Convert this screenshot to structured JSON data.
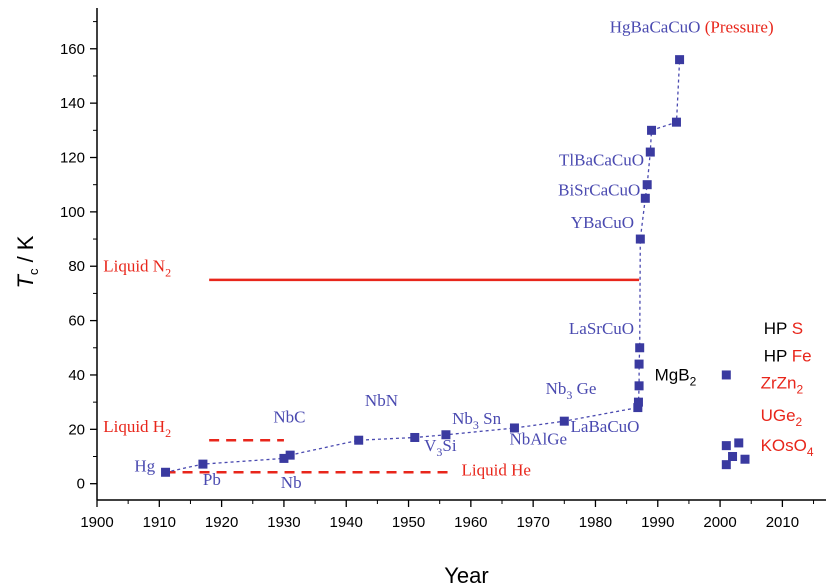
{
  "chart_data": {
    "type": "scatter",
    "xlabel": "Year",
    "ylabel": "T_c / K",
    "xlim": [
      1900,
      2017
    ],
    "ylim": [
      -6,
      175
    ],
    "x_ticks": [
      1900,
      1910,
      1920,
      1930,
      1940,
      1950,
      1960,
      1970,
      1980,
      1990,
      2000,
      2010
    ],
    "y_ticks": [
      0,
      20,
      40,
      60,
      80,
      100,
      120,
      140,
      160
    ],
    "colors": {
      "point": "#3a3aa0",
      "connector": "#4a4ab0",
      "coolant": "#e8261b",
      "label_blue": "#4a4ab0",
      "label_red": "#e8261b",
      "label_black": "#000000"
    },
    "series": [
      {
        "points": [
          {
            "x": 1911,
            "y": 4.2
          },
          {
            "x": 1917,
            "y": 7.2
          },
          {
            "x": 1930,
            "y": 9.3
          },
          {
            "x": 1931,
            "y": 10.5
          },
          {
            "x": 1942,
            "y": 16
          },
          {
            "x": 1951,
            "y": 17
          },
          {
            "x": 1956,
            "y": 18
          },
          {
            "x": 1967,
            "y": 20.5
          },
          {
            "x": 1975,
            "y": 23
          },
          {
            "x": 1986.8,
            "y": 28
          },
          {
            "x": 1986.9,
            "y": 30
          },
          {
            "x": 1987,
            "y": 36
          },
          {
            "x": 1987,
            "y": 44
          },
          {
            "x": 1987.1,
            "y": 50
          },
          {
            "x": 1987.2,
            "y": 90
          },
          {
            "x": 1988,
            "y": 105
          },
          {
            "x": 1988.3,
            "y": 110
          },
          {
            "x": 1988.8,
            "y": 122
          },
          {
            "x": 1989,
            "y": 130
          },
          {
            "x": 1993,
            "y": 133
          },
          {
            "x": 1993.5,
            "y": 156
          }
        ],
        "connected": true
      },
      {
        "points": [
          {
            "x": 2001,
            "y": 40
          },
          {
            "x": 2001,
            "y": 14
          },
          {
            "x": 2001,
            "y": 7
          },
          {
            "x": 2002,
            "y": 10
          },
          {
            "x": 2003,
            "y": 15
          },
          {
            "x": 2004,
            "y": 9
          }
        ],
        "connected": false
      }
    ],
    "reference_lines": [
      {
        "label_id": "liquid_n2",
        "y": 75,
        "x_start": 1918,
        "x_end": 1987,
        "style": "solid"
      },
      {
        "label_id": "liquid_h2",
        "y": 16,
        "x_start": 1918,
        "x_end": 1930,
        "style": "dashed"
      },
      {
        "label_id": "liquid_he",
        "y": 4.2,
        "x_start": 1911,
        "x_end": 1957,
        "style": "dashed"
      }
    ],
    "annotations": [
      {
        "id": "hg",
        "x": 1906,
        "y": 4.5,
        "parts": [
          {
            "t": "Hg"
          }
        ],
        "color": "label_blue",
        "font": "serif",
        "anchor": "start"
      },
      {
        "id": "pb",
        "x": 1917,
        "y": -0.5,
        "parts": [
          {
            "t": "Pb"
          }
        ],
        "color": "label_blue",
        "font": "serif",
        "anchor": "start"
      },
      {
        "id": "nb",
        "x": 1929.5,
        "y": -1.5,
        "parts": [
          {
            "t": "Nb"
          }
        ],
        "color": "label_blue",
        "font": "serif",
        "anchor": "start"
      },
      {
        "id": "nbc",
        "x": 1928.3,
        "y": 22.5,
        "parts": [
          {
            "t": "NbC"
          }
        ],
        "color": "label_blue",
        "font": "serif",
        "anchor": "start"
      },
      {
        "id": "nbn",
        "x": 1943,
        "y": 28.5,
        "parts": [
          {
            "t": "NbN"
          }
        ],
        "color": "label_blue",
        "font": "serif",
        "anchor": "start"
      },
      {
        "id": "v3si",
        "x": 1952.5,
        "y": 12,
        "parts": [
          {
            "t": "V"
          },
          {
            "t": "3",
            "sub": true
          },
          {
            "t": "Si"
          }
        ],
        "color": "label_blue",
        "font": "serif",
        "anchor": "start"
      },
      {
        "id": "nb3sn",
        "x": 1957,
        "y": 22,
        "parts": [
          {
            "t": "Nb"
          },
          {
            "t": "3",
            "sub": true
          },
          {
            "t": " Sn"
          }
        ],
        "color": "label_blue",
        "font": "serif",
        "anchor": "start"
      },
      {
        "id": "nb3ge",
        "x": 1972,
        "y": 33,
        "parts": [
          {
            "t": "Nb"
          },
          {
            "t": "3",
            "sub": true
          },
          {
            "t": " Ge"
          }
        ],
        "color": "label_blue",
        "font": "serif",
        "anchor": "start"
      },
      {
        "id": "nbalge",
        "x": 1966.2,
        "y": 14.5,
        "parts": [
          {
            "t": "NbAlGe"
          }
        ],
        "color": "label_blue",
        "font": "serif",
        "anchor": "start"
      },
      {
        "id": "labacuo",
        "x": 1976,
        "y": 19,
        "parts": [
          {
            "t": "LaBaCuO"
          }
        ],
        "color": "label_blue",
        "font": "serif",
        "anchor": "start"
      },
      {
        "id": "lasrcuo",
        "x": 1986.2,
        "y": 55,
        "parts": [
          {
            "t": "LaSrCuO"
          }
        ],
        "color": "label_blue",
        "font": "serif",
        "anchor": "end"
      },
      {
        "id": "ybacuo",
        "x": 1986.2,
        "y": 94,
        "parts": [
          {
            "t": "YBaCuO"
          }
        ],
        "color": "label_blue",
        "font": "serif",
        "anchor": "end"
      },
      {
        "id": "bisrcacuo",
        "x": 1987.2,
        "y": 106,
        "parts": [
          {
            "t": "BiSrCaCuO"
          }
        ],
        "color": "label_blue",
        "font": "serif",
        "anchor": "end"
      },
      {
        "id": "tlbacacuo",
        "x": 1987.8,
        "y": 117,
        "parts": [
          {
            "t": "TlBaCaCuO"
          }
        ],
        "color": "label_blue",
        "font": "serif",
        "anchor": "end"
      },
      {
        "id": "hgbacacuo",
        "x": 1982.3,
        "y": 166,
        "parts": [
          {
            "t": "HgBaCaCuO ",
            "color": "label_blue"
          },
          {
            "t": "(Pressure)",
            "color": "label_red"
          }
        ],
        "color": "label_blue",
        "font": "serif",
        "anchor": "start"
      },
      {
        "id": "mgb2",
        "x": 1989.5,
        "y": 38,
        "parts": [
          {
            "t": "MgB"
          },
          {
            "t": "2",
            "sub": true
          }
        ],
        "color": "label_black",
        "font": "sans",
        "anchor": "start"
      },
      {
        "id": "liquid_n2",
        "x": 1901,
        "y": 78,
        "parts": [
          {
            "t": "Liquid N"
          },
          {
            "t": "2",
            "sub": true
          }
        ],
        "color": "label_red",
        "font": "serif",
        "anchor": "start"
      },
      {
        "id": "liquid_h2",
        "x": 1901,
        "y": 19,
        "parts": [
          {
            "t": "Liquid H"
          },
          {
            "t": "2",
            "sub": true
          }
        ],
        "color": "label_red",
        "font": "serif",
        "anchor": "start"
      },
      {
        "id": "liquid_he",
        "x": 1958.5,
        "y": 3,
        "parts": [
          {
            "t": "Liquid He"
          }
        ],
        "color": "label_red",
        "font": "serif",
        "anchor": "start"
      },
      {
        "id": "hp_s",
        "x": 2007,
        "y": 55,
        "parts": [
          {
            "t": "HP ",
            "color": "label_black"
          },
          {
            "t": "S",
            "color": "label_red"
          }
        ],
        "color": "label_black",
        "font": "sans",
        "anchor": "start"
      },
      {
        "id": "hp_fe",
        "x": 2007,
        "y": 45,
        "parts": [
          {
            "t": "HP ",
            "color": "label_black"
          },
          {
            "t": "Fe",
            "color": "label_red"
          }
        ],
        "color": "label_black",
        "font": "sans",
        "anchor": "start"
      },
      {
        "id": "zrzn2",
        "x": 2006.5,
        "y": 35,
        "parts": [
          {
            "t": "ZrZn"
          },
          {
            "t": "2",
            "sub": true
          }
        ],
        "color": "label_red",
        "font": "sans",
        "anchor": "start"
      },
      {
        "id": "uge2",
        "x": 2006.5,
        "y": 23,
        "parts": [
          {
            "t": "UGe"
          },
          {
            "t": "2",
            "sub": true
          }
        ],
        "color": "label_red",
        "font": "sans",
        "anchor": "start"
      },
      {
        "id": "kos",
        "x": 2006.5,
        "y": 12,
        "parts": [
          {
            "t": "KOsO"
          },
          {
            "t": "4",
            "sub": true
          }
        ],
        "color": "label_red",
        "font": "sans",
        "anchor": "start"
      }
    ]
  }
}
